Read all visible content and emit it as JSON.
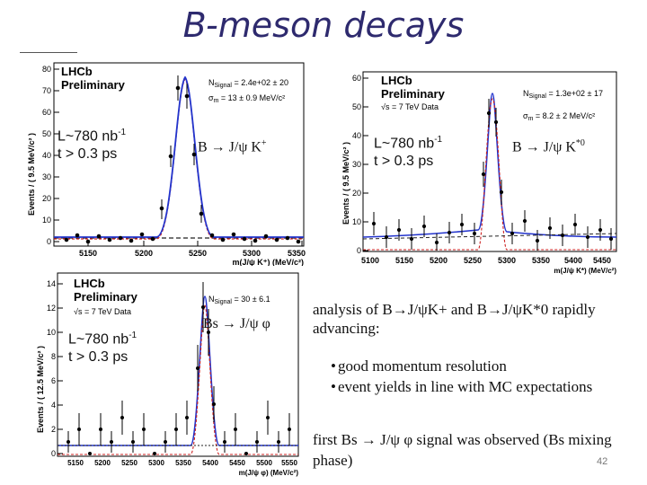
{
  "slide": {
    "title": "B-meson decays",
    "page_number": "42",
    "text_block_1": "analysis of B→J/ψK+ and B→J/ψK*0 rapidly advancing:",
    "bullets": [
      "good momentum resolution",
      "event  yields in line with MC expectations"
    ],
    "text_block_2": "first Bs → J/ψ φ signal was observed (Bs mixing phase)"
  },
  "plots": [
    {
      "name": "bk-plus",
      "lhcb_label": "LHCb",
      "prelim_label": "Preliminary",
      "lumi_line1": "L~780 nb",
      "lumi_sup": "-1",
      "lumi_line2": "t > 0.3 ps",
      "decay_label": "B → J/ψ K",
      "decay_sup": "+",
      "nsignal": "N",
      "nsignal_sub": "Signal",
      "nsignal_value": " = 2.4e+02 ± 20",
      "sigma": "σ",
      "sigma_sub": "m",
      "sigma_value": " = 13 ± 0.9 MeV/c²",
      "ylabel": "Events / ( 9.5 MeV/c² )",
      "xlabel": "m(J/ψ K⁺) (MeV/c²)",
      "xticks": [
        "5150",
        "5200",
        "5250",
        "5300",
        "5350"
      ],
      "yticks": [
        "0",
        "10",
        "20",
        "30",
        "40",
        "50",
        "60",
        "70",
        "80"
      ]
    },
    {
      "name": "bk-star",
      "lhcb_label": "LHCb",
      "prelim_label": "Preliminary",
      "energy_label": "√s = 7 TeV Data",
      "lumi_line1": "L~780 nb",
      "lumi_sup": "-1",
      "lumi_line2": "t > 0.3 ps",
      "decay_label": "B → J/ψ K",
      "decay_sup": "*0",
      "nsignal": "N",
      "nsignal_sub": "Signal",
      "nsignal_value": " = 1.3e+02 ± 17",
      "sigma": "σ",
      "sigma_sub": "m",
      "sigma_value": " = 8.2 ± 2 MeV/c²",
      "ylabel": "Events / ( 9.5 MeV/c² )",
      "xlabel": "m(J/ψ K*) (MeV/c²)",
      "xticks": [
        "5100",
        "5150",
        "5200",
        "5250",
        "5300",
        "5350",
        "5400",
        "5450"
      ],
      "yticks": [
        "0",
        "10",
        "20",
        "30",
        "40",
        "50",
        "60"
      ]
    },
    {
      "name": "bs-phi",
      "lhcb_label": "LHCb",
      "prelim_label": "Preliminary",
      "energy_label": "√s = 7 TeV Data",
      "lumi_line1": "L~780 nb",
      "lumi_sup": "-1",
      "lumi_line2": "t > 0.3 ps",
      "decay_label": "Bs → J/ψ φ",
      "nsignal": "N",
      "nsignal_sub": "Signal",
      "nsignal_value": " = 30 ± 6.1",
      "ylabel": "Events / ( 12.5 MeV/c² )",
      "xlabel": "m(J/ψ φ) (MeV/c²)",
      "xticks": [
        "5150",
        "5200",
        "5250",
        "5300",
        "5350",
        "5400",
        "5450",
        "5500",
        "5550"
      ],
      "yticks": [
        "0",
        "2",
        "4",
        "6",
        "8",
        "10",
        "12",
        "14"
      ]
    }
  ],
  "colors": {
    "title": "#2e2a6e",
    "fit_total": "#2233cc",
    "fit_signal": "#cc2222",
    "background": "#222222"
  }
}
